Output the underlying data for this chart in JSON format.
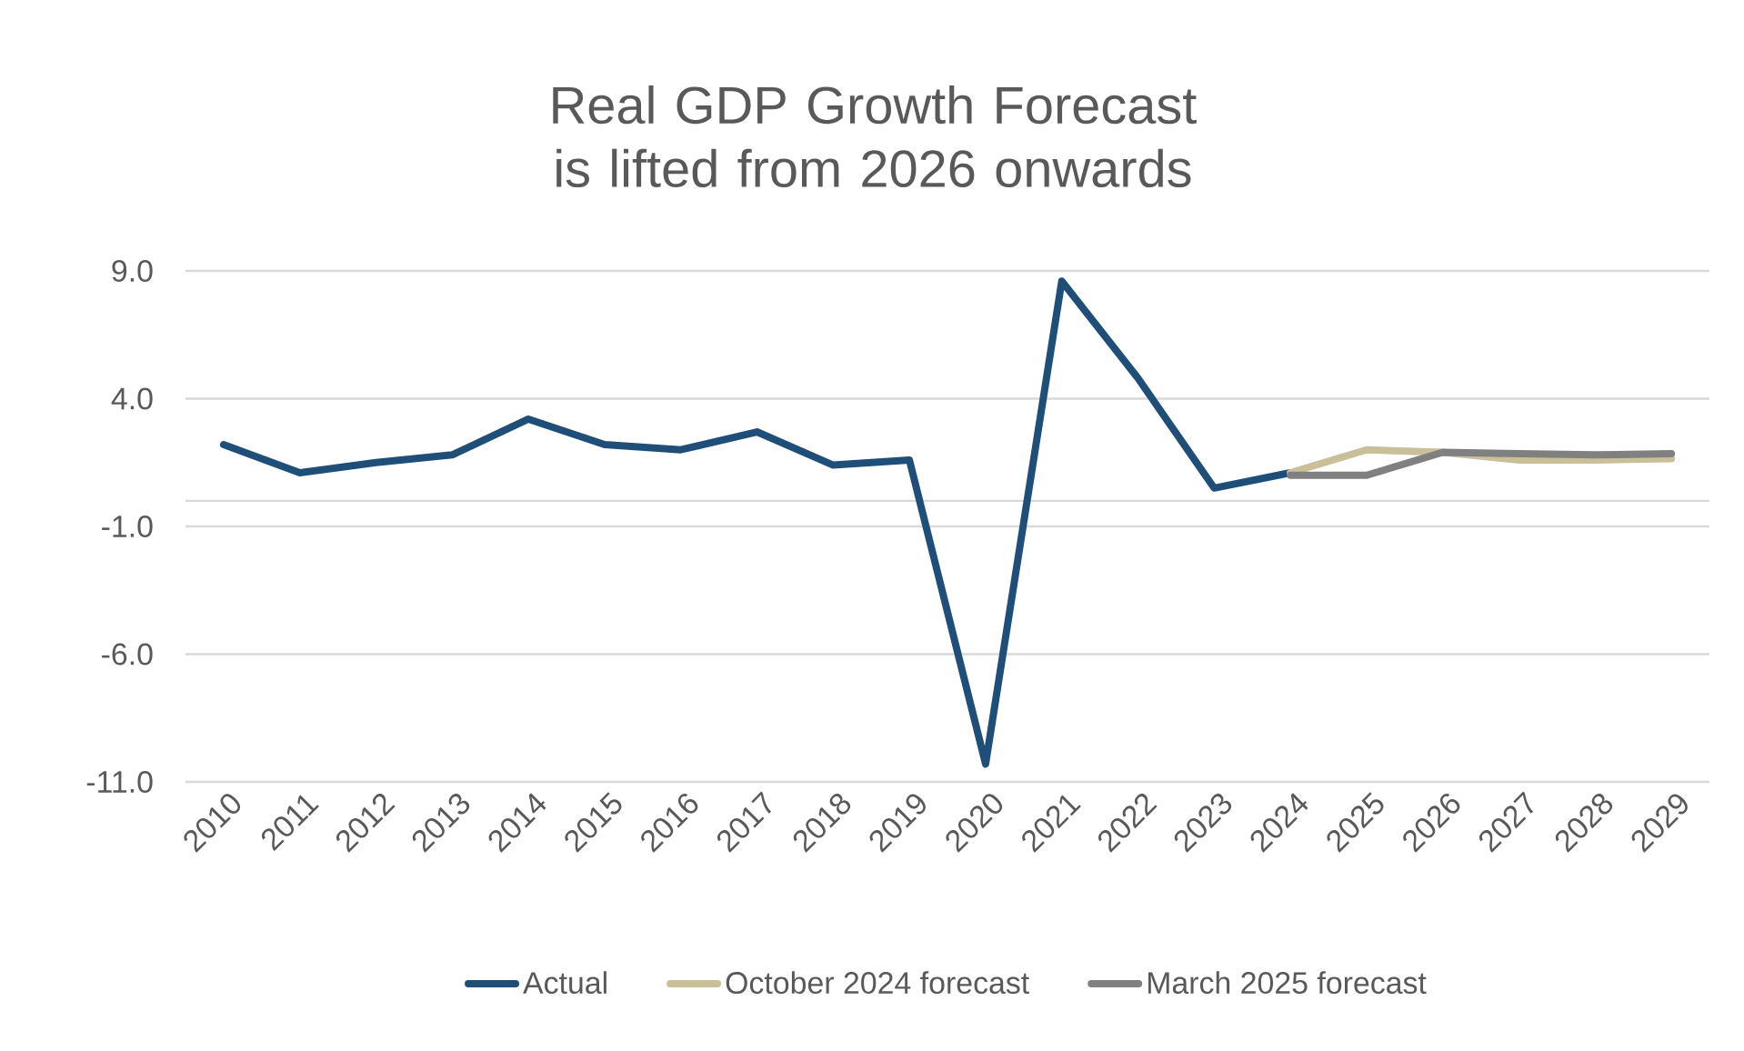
{
  "chart_data": {
    "type": "line",
    "title": "Real GDP Growth Forecast is lifted from 2026 onwards",
    "categories": [
      "2010",
      "2011",
      "2012",
      "2013",
      "2014",
      "2015",
      "2016",
      "2017",
      "2018",
      "2019",
      "2020",
      "2021",
      "2022",
      "2023",
      "2024",
      "2025",
      "2026",
      "2027",
      "2028",
      "2029"
    ],
    "series": [
      {
        "name": "Actual",
        "color": "#1f4e79",
        "values": [
          2.2,
          1.1,
          1.5,
          1.8,
          3.2,
          2.2,
          2.0,
          2.7,
          1.4,
          1.6,
          -10.3,
          8.6,
          4.8,
          0.5,
          1.1,
          null,
          null,
          null,
          null,
          null
        ]
      },
      {
        "name": "October 2024 forecast",
        "color": "#c9c09a",
        "values": [
          null,
          null,
          null,
          null,
          null,
          null,
          null,
          null,
          null,
          null,
          null,
          null,
          null,
          null,
          1.1,
          2.0,
          1.9,
          1.6,
          1.6,
          1.65
        ]
      },
      {
        "name": "March 2025 forecast",
        "color": "#808080",
        "values": [
          null,
          null,
          null,
          null,
          null,
          null,
          null,
          null,
          null,
          null,
          null,
          null,
          null,
          null,
          1.0,
          1.0,
          1.9,
          1.85,
          1.8,
          1.85
        ]
      }
    ],
    "ylim": [
      -11,
      9
    ],
    "yticks": [
      {
        "value": 9,
        "label": "9.0"
      },
      {
        "value": 4,
        "label": "4.0"
      },
      {
        "value": -1,
        "label": "-1.0"
      },
      {
        "value": -6,
        "label": "-6.0"
      },
      {
        "value": -11,
        "label": "-11.0"
      }
    ],
    "grid": "y",
    "legend": "bottom",
    "line_style": "solid",
    "marker": "none"
  }
}
